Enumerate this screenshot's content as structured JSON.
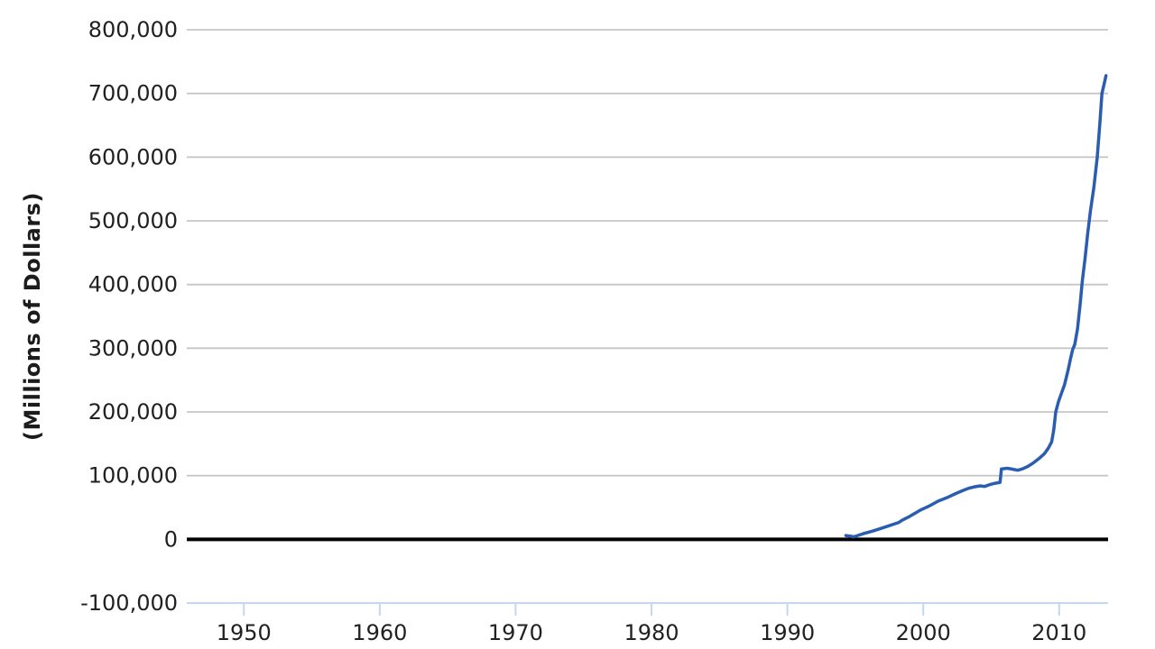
{
  "chart_data": {
    "type": "line",
    "title": "",
    "xlabel": "",
    "ylabel": "(Millions of Dollars)",
    "x_ticks": [
      1950,
      1960,
      1970,
      1980,
      1990,
      2000,
      2010
    ],
    "y_ticks": [
      -100000,
      0,
      100000,
      200000,
      300000,
      400000,
      500000,
      600000,
      700000,
      800000
    ],
    "xlim": [
      1945.8,
      2013.6
    ],
    "ylim": [
      -100000,
      800000
    ],
    "grid": "horizontal-only",
    "legend_position": "none",
    "zero_baseline": {
      "value": 0,
      "color": "#000000"
    },
    "colors": {
      "gridline": "#c6c6c6",
      "axis_line": "#c3d7ee",
      "tick": "#c3d7ee",
      "label": "#212121",
      "background": "#ffffff"
    },
    "series": [
      {
        "name": "value",
        "color": "#2a5db0",
        "points": [
          [
            1994.3,
            6000
          ],
          [
            1994.9,
            4000
          ],
          [
            1995.6,
            9000
          ],
          [
            1996.3,
            13000
          ],
          [
            1997.3,
            20000
          ],
          [
            1998.2,
            26500
          ],
          [
            1998.45,
            30000
          ],
          [
            1999.0,
            36000
          ],
          [
            1999.8,
            46000
          ],
          [
            2000.5,
            53000
          ],
          [
            2001.1,
            60000
          ],
          [
            2001.8,
            66000
          ],
          [
            2002.4,
            72000
          ],
          [
            2003.0,
            77500
          ],
          [
            2003.4,
            80500
          ],
          [
            2003.8,
            82500
          ],
          [
            2004.2,
            84000
          ],
          [
            2004.5,
            83000
          ],
          [
            2004.9,
            86000
          ],
          [
            2005.3,
            88000
          ],
          [
            2005.65,
            89500
          ],
          [
            2005.75,
            110500
          ],
          [
            2006.2,
            111500
          ],
          [
            2006.6,
            110000
          ],
          [
            2006.95,
            108500
          ],
          [
            2007.3,
            110500
          ],
          [
            2007.7,
            114500
          ],
          [
            2008.1,
            120000
          ],
          [
            2008.5,
            126500
          ],
          [
            2008.9,
            134000
          ],
          [
            2009.2,
            143000
          ],
          [
            2009.45,
            153000
          ],
          [
            2009.6,
            172000
          ],
          [
            2009.75,
            200000
          ],
          [
            2009.95,
            216000
          ],
          [
            2010.15,
            228000
          ],
          [
            2010.4,
            243000
          ],
          [
            2010.65,
            265000
          ],
          [
            2010.85,
            285000
          ],
          [
            2011.0,
            298000
          ],
          [
            2011.15,
            306000
          ],
          [
            2011.35,
            330000
          ],
          [
            2011.55,
            370000
          ],
          [
            2011.7,
            405000
          ],
          [
            2011.9,
            440000
          ],
          [
            2012.1,
            480000
          ],
          [
            2012.3,
            515000
          ],
          [
            2012.55,
            552000
          ],
          [
            2012.8,
            600000
          ],
          [
            2013.0,
            655000
          ],
          [
            2013.15,
            700000
          ],
          [
            2013.3,
            714000
          ],
          [
            2013.45,
            728000
          ]
        ]
      }
    ]
  }
}
